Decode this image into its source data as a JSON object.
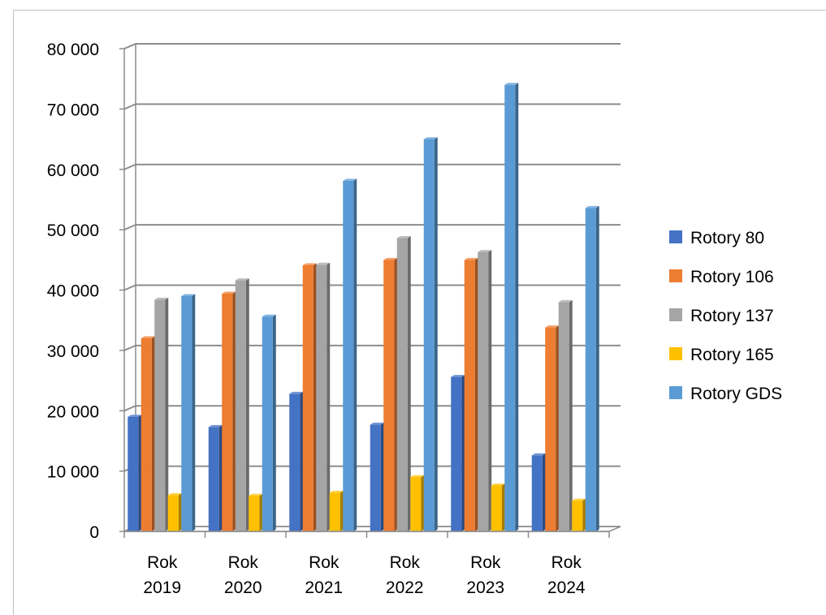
{
  "chart_data": {
    "type": "bar",
    "categories": [
      "Rok 2019",
      "Rok 2020",
      "Rok 2021",
      "Rok 2022",
      "Rok 2023",
      "Rok 2024"
    ],
    "series": [
      {
        "name": "Rotory 80",
        "color": "#4472c4",
        "values": [
          19000,
          17300,
          22800,
          17700,
          25600,
          12600
        ]
      },
      {
        "name": "Rotory 106",
        "color": "#ed7d31",
        "values": [
          32000,
          39400,
          44100,
          45000,
          45000,
          33800
        ]
      },
      {
        "name": "Rotory 137",
        "color": "#a5a5a5",
        "values": [
          38400,
          41600,
          44200,
          48600,
          46300,
          38000
        ]
      },
      {
        "name": "Rotory 165",
        "color": "#ffc000",
        "values": [
          6000,
          5900,
          6400,
          9000,
          7600,
          5100
        ]
      },
      {
        "name": "Rotory GDS",
        "color": "#5b9bd5",
        "values": [
          39000,
          35600,
          58100,
          65000,
          74000,
          53600
        ]
      }
    ],
    "yticks": [
      "0",
      "10 000",
      "20 000",
      "30 000",
      "40 000",
      "50 000",
      "60 000",
      "70 000",
      "80 000"
    ],
    "ylim": [
      0,
      80000
    ],
    "grid": true,
    "legend": "right",
    "title": "",
    "xlabel": "",
    "ylabel": ""
  }
}
